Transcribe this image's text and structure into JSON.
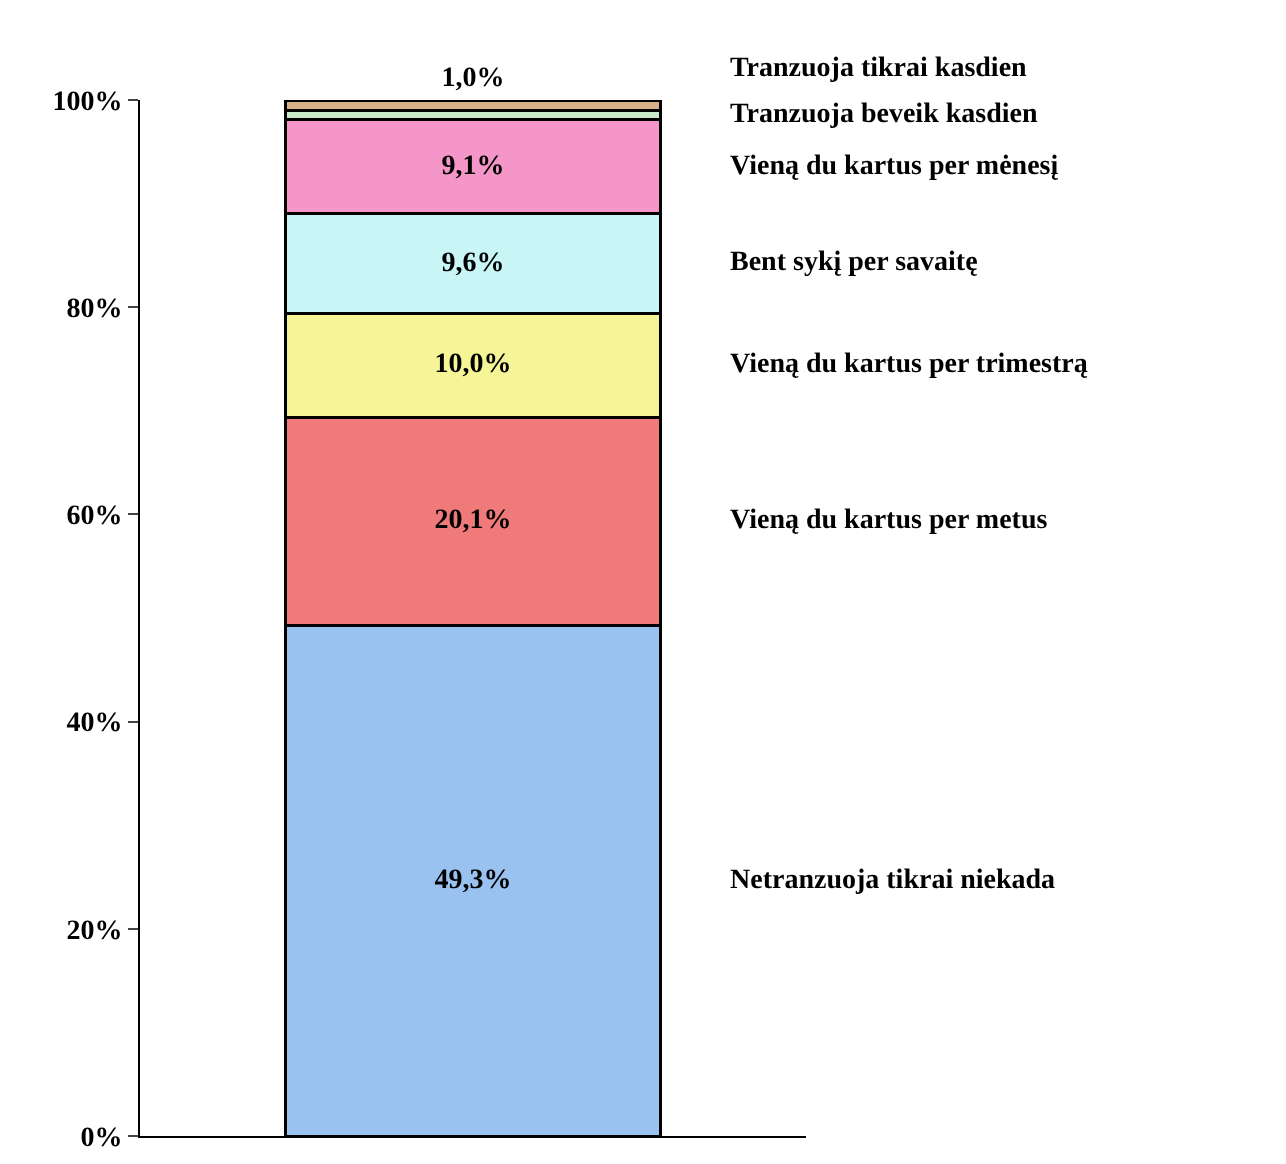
{
  "chart_data": {
    "type": "bar",
    "stacked": true,
    "categories": [
      null
    ],
    "ylim": [
      0,
      100
    ],
    "yticks": [
      {
        "value": 0,
        "label": "0%"
      },
      {
        "value": 20,
        "label": "20%"
      },
      {
        "value": 40,
        "label": "40%"
      },
      {
        "value": 60,
        "label": "60%"
      },
      {
        "value": 80,
        "label": "80%"
      },
      {
        "value": 100,
        "label": "100%"
      }
    ],
    "grid": false,
    "legend": false,
    "series": [
      {
        "name": "Netranzuoja tikrai niekada",
        "color": "#99c2f0",
        "values": [
          49.3
        ],
        "value_labels": [
          "49,3%"
        ]
      },
      {
        "name": "Vieną du kartus per metus",
        "color": "#f07a7a",
        "values": [
          20.1
        ],
        "value_labels": [
          "20,1%"
        ]
      },
      {
        "name": "Vieną du kartus per trimestrą",
        "color": "#f5f598",
        "values": [
          10.0
        ],
        "value_labels": [
          "10,0%"
        ]
      },
      {
        "name": "Bent sykį per savaitę",
        "color": "#c8f5f5",
        "values": [
          9.6
        ],
        "value_labels": [
          "9,6%"
        ]
      },
      {
        "name": "Vieną du kartus per mėnesį",
        "color": "#f596c8",
        "values": [
          9.1
        ],
        "value_labels": [
          "9,1%"
        ]
      },
      {
        "name": "Tranzuoja beveik kasdien",
        "color": "#c8ecc8",
        "values": [
          0.9
        ],
        "value_labels": [
          null
        ]
      },
      {
        "name": "Tranzuoja tikrai kasdien",
        "color": "#d8b088",
        "values": [
          1.0
        ],
        "value_labels": [
          "1,0%"
        ]
      }
    ]
  }
}
